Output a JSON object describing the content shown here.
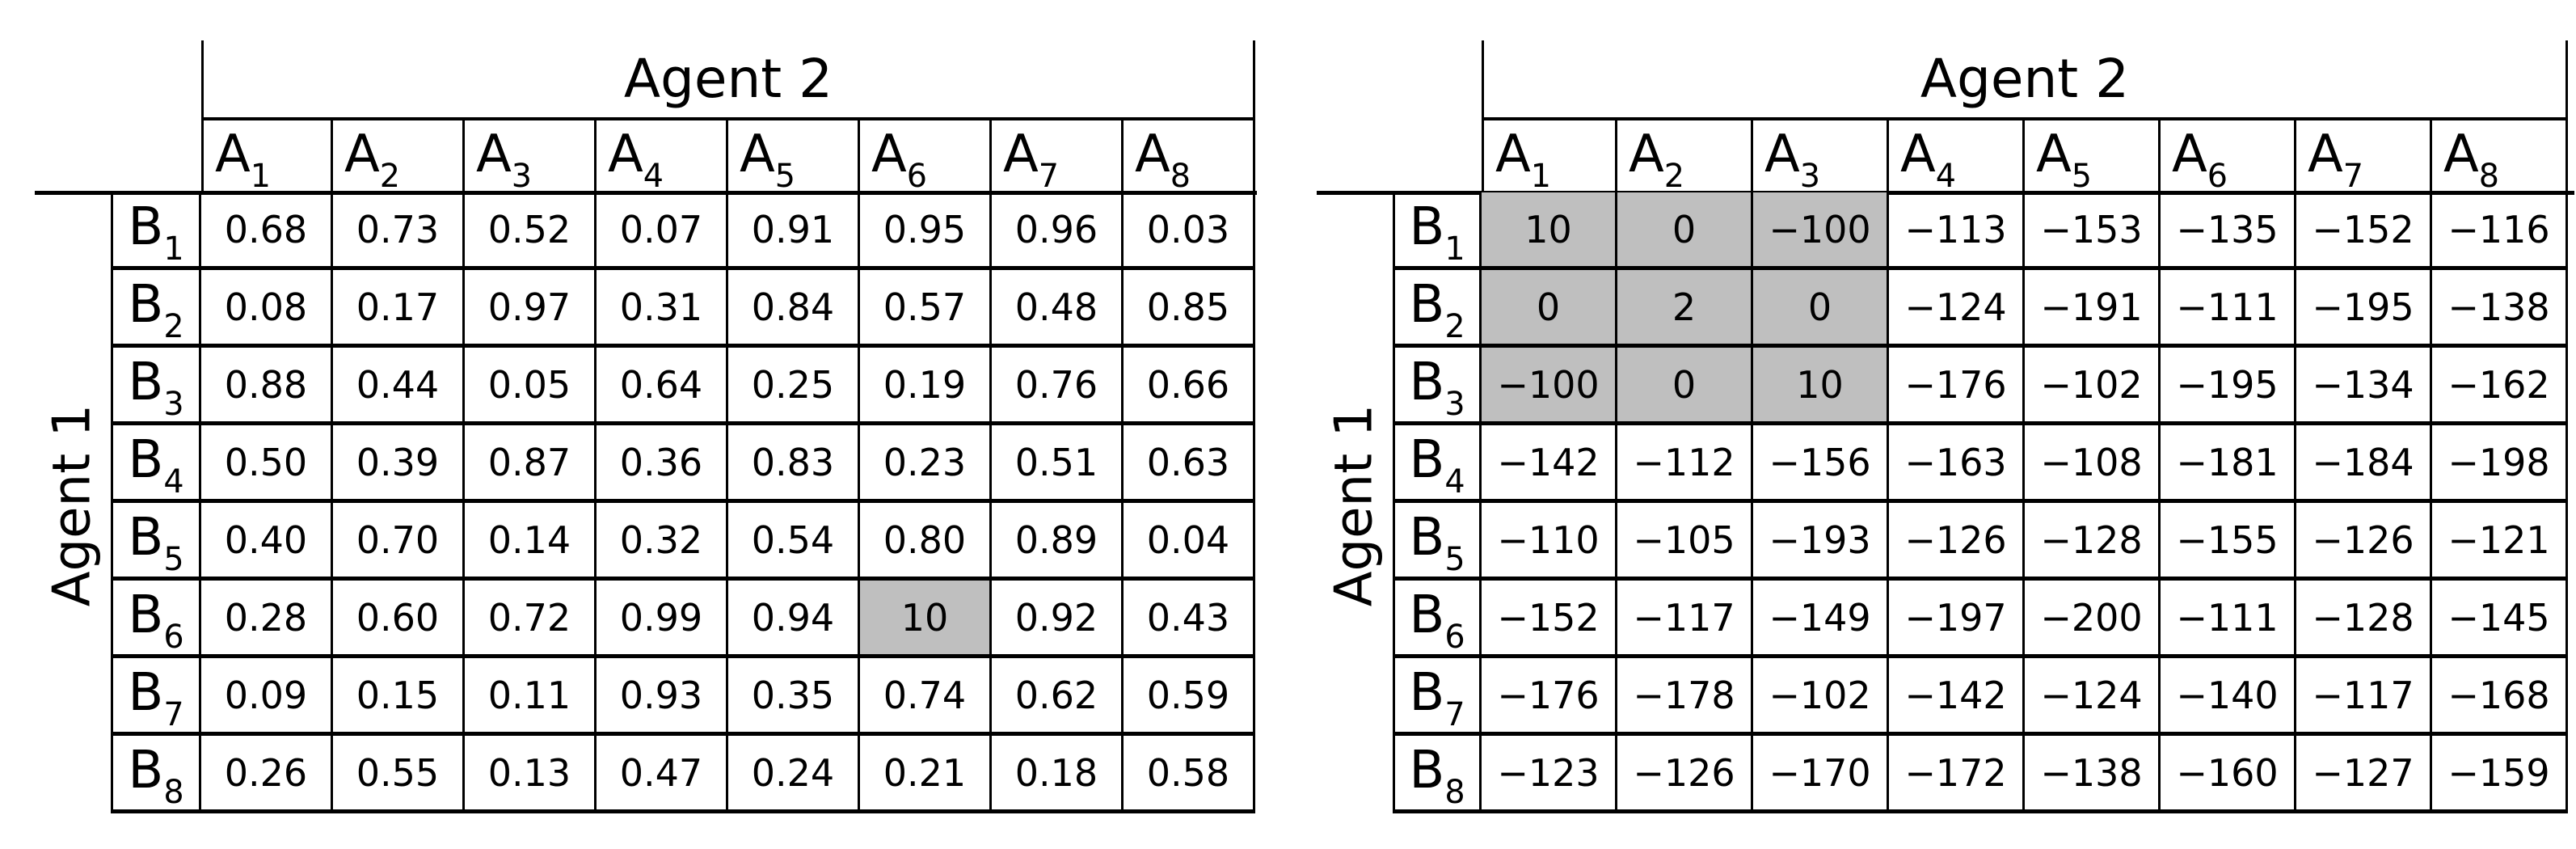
{
  "figure": {
    "background": "#ffffff",
    "border_color": "#000000",
    "highlight_color": "#bfbfbf"
  },
  "chart_data": [
    {
      "type": "table",
      "name": "payoff-matrix-left",
      "col_group_label": "Agent 2",
      "row_group_label": "Agent 1",
      "columns": [
        "A1",
        "A2",
        "A3",
        "A4",
        "A5",
        "A6",
        "A7",
        "A8"
      ],
      "rows": [
        "B1",
        "B2",
        "B3",
        "B4",
        "B5",
        "B6",
        "B7",
        "B8"
      ],
      "values": [
        [
          "0.68",
          "0.73",
          "0.52",
          "0.07",
          "0.91",
          "0.95",
          "0.96",
          "0.03"
        ],
        [
          "0.08",
          "0.17",
          "0.97",
          "0.31",
          "0.84",
          "0.57",
          "0.48",
          "0.85"
        ],
        [
          "0.88",
          "0.44",
          "0.05",
          "0.64",
          "0.25",
          "0.19",
          "0.76",
          "0.66"
        ],
        [
          "0.50",
          "0.39",
          "0.87",
          "0.36",
          "0.83",
          "0.23",
          "0.51",
          "0.63"
        ],
        [
          "0.40",
          "0.70",
          "0.14",
          "0.32",
          "0.54",
          "0.80",
          "0.89",
          "0.04"
        ],
        [
          "0.28",
          "0.60",
          "0.72",
          "0.99",
          "0.94",
          "10",
          "0.92",
          "0.43"
        ],
        [
          "0.09",
          "0.15",
          "0.11",
          "0.93",
          "0.35",
          "0.74",
          "0.62",
          "0.59"
        ],
        [
          "0.26",
          "0.55",
          "0.13",
          "0.47",
          "0.24",
          "0.21",
          "0.18",
          "0.58"
        ]
      ],
      "highlighted_cells": [
        [
          5,
          5
        ]
      ]
    },
    {
      "type": "table",
      "name": "payoff-matrix-right",
      "col_group_label": "Agent 2",
      "row_group_label": "Agent 1",
      "columns": [
        "A1",
        "A2",
        "A3",
        "A4",
        "A5",
        "A6",
        "A7",
        "A8"
      ],
      "rows": [
        "B1",
        "B2",
        "B3",
        "B4",
        "B5",
        "B6",
        "B7",
        "B8"
      ],
      "values": [
        [
          "10",
          "0",
          "−100",
          "−113",
          "−153",
          "−135",
          "−152",
          "−116"
        ],
        [
          "0",
          "2",
          "0",
          "−124",
          "−191",
          "−111",
          "−195",
          "−138"
        ],
        [
          "−100",
          "0",
          "10",
          "−176",
          "−102",
          "−195",
          "−134",
          "−162"
        ],
        [
          "−142",
          "−112",
          "−156",
          "−163",
          "−108",
          "−181",
          "−184",
          "−198"
        ],
        [
          "−110",
          "−105",
          "−193",
          "−126",
          "−128",
          "−155",
          "−126",
          "−121"
        ],
        [
          "−152",
          "−117",
          "−149",
          "−197",
          "−200",
          "−111",
          "−128",
          "−145"
        ],
        [
          "−176",
          "−178",
          "−102",
          "−142",
          "−124",
          "−140",
          "−117",
          "−168"
        ],
        [
          "−123",
          "−126",
          "−170",
          "−172",
          "−138",
          "−160",
          "−127",
          "−159"
        ]
      ],
      "highlighted_cells": [
        [
          0,
          0
        ],
        [
          0,
          1
        ],
        [
          0,
          2
        ],
        [
          1,
          0
        ],
        [
          1,
          1
        ],
        [
          1,
          2
        ],
        [
          2,
          0
        ],
        [
          2,
          1
        ],
        [
          2,
          2
        ]
      ]
    }
  ]
}
